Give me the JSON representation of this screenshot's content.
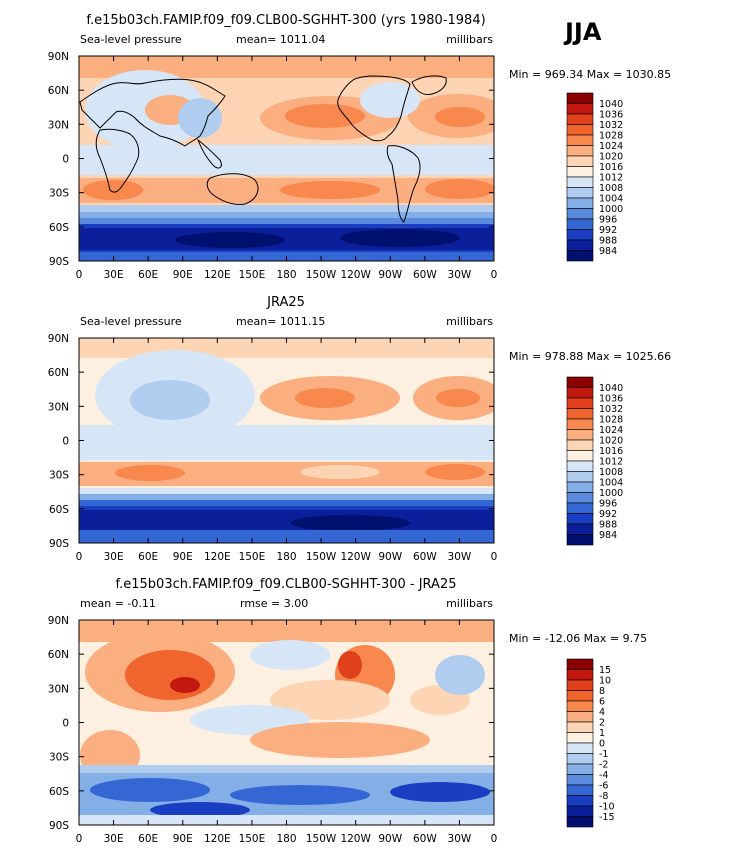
{
  "season": "JJA",
  "lon_ticks": [
    "0",
    "30E",
    "60E",
    "90E",
    "120E",
    "150E",
    "180",
    "150W",
    "120W",
    "90W",
    "60W",
    "30W",
    "0"
  ],
  "lat_ticks": [
    "90N",
    "60N",
    "30N",
    "0",
    "30S",
    "60S",
    "90S"
  ],
  "chart_data": [
    {
      "type": "heatmap",
      "title": "f.e15b03ch.FAMIP.f09_f09.CLB00-SGHHT-300 (yrs 1980-1984)",
      "variable": "Sea-level pressure",
      "mean_label": "mean= 1011.04",
      "units": "millibars",
      "min_max_label": "Min = 969.34 Max = 1030.85",
      "min": 969.34,
      "max": 1030.85,
      "mean": 1011.04,
      "xlim": [
        0,
        360
      ],
      "ylim": [
        -90,
        90
      ],
      "colorbar_levels": [
        "1040",
        "1036",
        "1032",
        "1028",
        "1024",
        "1020",
        "1016",
        "1012",
        "1008",
        "1004",
        "1000",
        "996",
        "992",
        "988",
        "984"
      ],
      "colorbar_colors": [
        "#8b0000",
        "#c2180f",
        "#e0401c",
        "#f0652d",
        "#f8884d",
        "#fbae80",
        "#fdd4b4",
        "#fdf0e0",
        "#d6e6f7",
        "#b0cdf0",
        "#84aee6",
        "#5a8bdc",
        "#3466d4",
        "#1a3ec2",
        "#0b1f9a",
        "#00106e"
      ]
    },
    {
      "type": "heatmap",
      "title": "JRA25",
      "variable": "Sea-level pressure",
      "mean_label": "mean= 1011.15",
      "units": "millibars",
      "min_max_label": "Min = 978.88 Max = 1025.66",
      "min": 978.88,
      "max": 1025.66,
      "mean": 1011.15,
      "xlim": [
        0,
        360
      ],
      "ylim": [
        -90,
        90
      ],
      "colorbar_levels": [
        "1040",
        "1036",
        "1032",
        "1028",
        "1024",
        "1020",
        "1016",
        "1012",
        "1008",
        "1004",
        "1000",
        "996",
        "992",
        "988",
        "984"
      ],
      "colorbar_colors": [
        "#8b0000",
        "#c2180f",
        "#e0401c",
        "#f0652d",
        "#f8884d",
        "#fbae80",
        "#fdd4b4",
        "#fdf0e0",
        "#d6e6f7",
        "#b0cdf0",
        "#84aee6",
        "#5a8bdc",
        "#3466d4",
        "#1a3ec2",
        "#0b1f9a",
        "#00106e"
      ]
    },
    {
      "type": "heatmap",
      "title": "f.e15b03ch.FAMIP.f09_f09.CLB00-SGHHT-300 - JRA25",
      "variable": "mean =   -0.11",
      "mean_label": "rmse =    3.00",
      "units": "millibars",
      "min_max_label": "Min = -12.06 Max =    9.75",
      "min": -12.06,
      "max": 9.75,
      "mean": -0.11,
      "rmse": 3.0,
      "xlim": [
        0,
        360
      ],
      "ylim": [
        -90,
        90
      ],
      "colorbar_levels": [
        "15",
        "10",
        "8",
        "6",
        "4",
        "2",
        "1",
        "0",
        "-1",
        "-2",
        "-4",
        "-6",
        "-8",
        "-10",
        "-15"
      ],
      "colorbar_colors": [
        "#8b0000",
        "#c2180f",
        "#e0401c",
        "#f0652d",
        "#f8884d",
        "#fbae80",
        "#fdd4b4",
        "#fdf0e0",
        "#d6e6f7",
        "#b0cdf0",
        "#84aee6",
        "#5a8bdc",
        "#3466d4",
        "#1a3ec2",
        "#0b1f9a",
        "#00106e"
      ]
    }
  ]
}
